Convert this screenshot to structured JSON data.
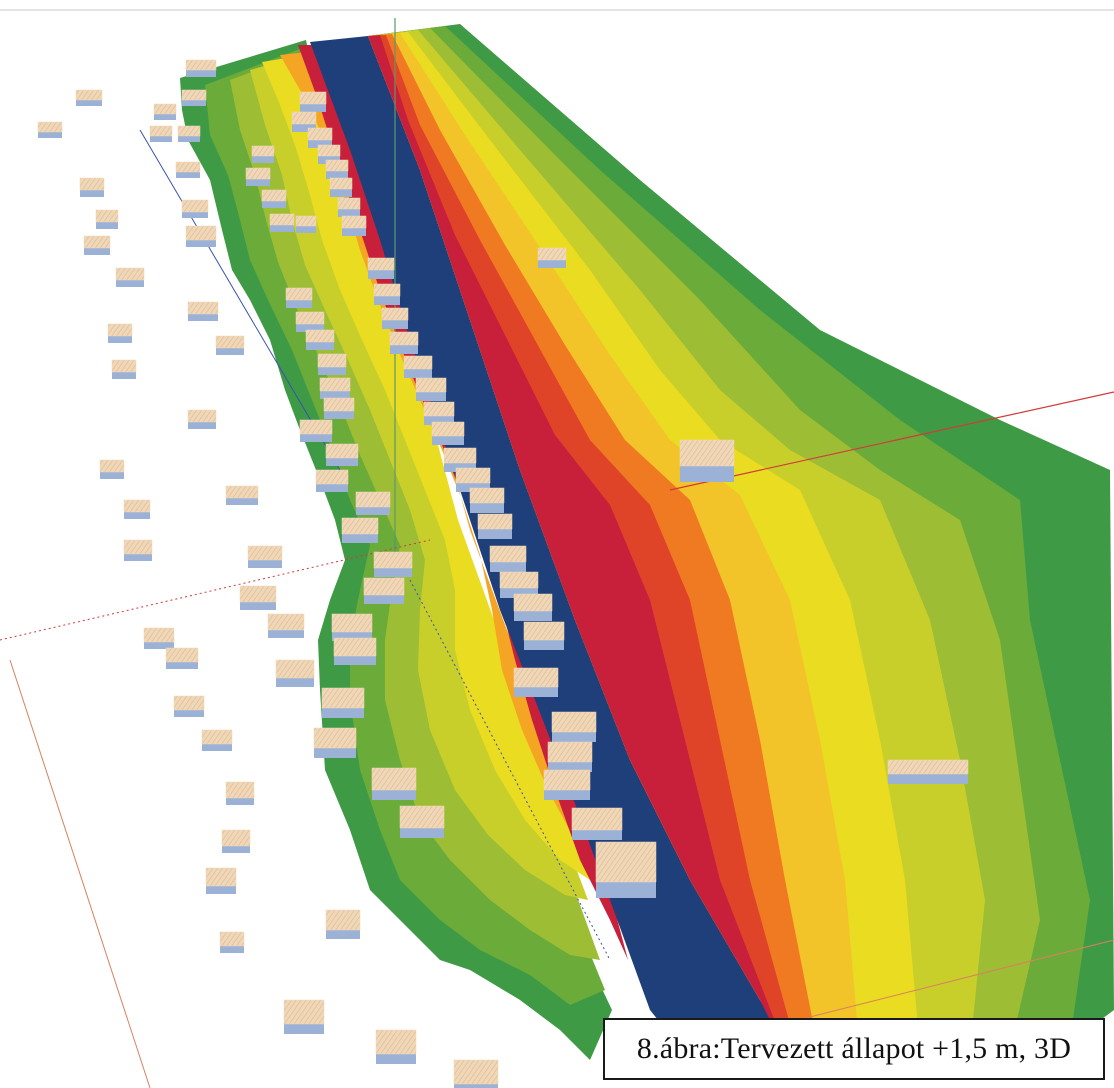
{
  "figure": {
    "caption": "8.ábra:Tervezett állapot +1,5 m, 3D"
  },
  "colors": {
    "background": "#ffffff",
    "water": "#1f3f7a",
    "water_dark": "#163066",
    "red": "#c8203a",
    "orange_red": "#e04428",
    "orange": "#f07a22",
    "orange_light": "#f5a524",
    "yellow_orange": "#f2c42a",
    "yellow": "#eadc20",
    "yellow_green": "#c8cf2a",
    "light_green": "#9dbd34",
    "green": "#6aab3a",
    "dark_green": "#3f9a45",
    "building": "#f0d7b8",
    "building_side": "#9bb2d6",
    "axis_green": "#5a9a6a",
    "axis_red": "#d23a3a",
    "axis_blue": "#3a52b0"
  }
}
